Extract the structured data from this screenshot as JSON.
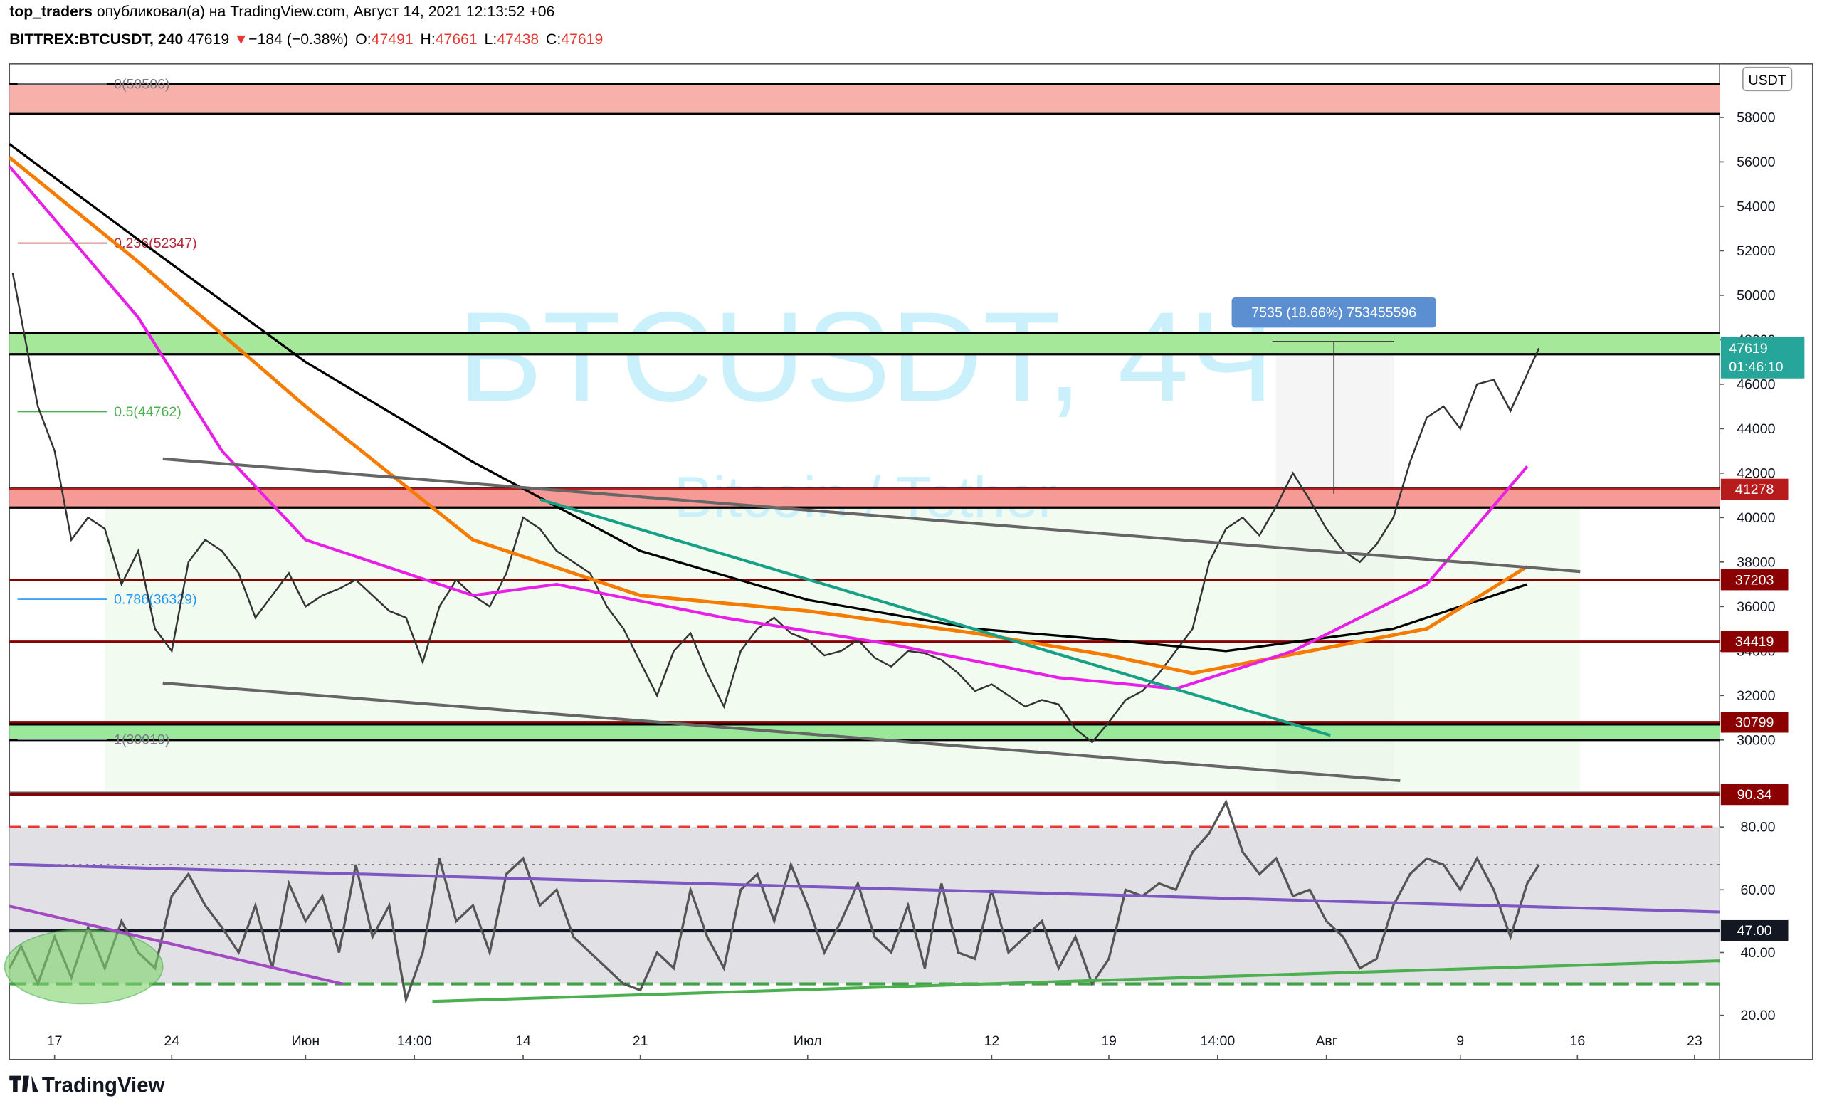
{
  "header": {
    "author": "top_traders",
    "published": "опубликовал(а) на TradingView.com, Август 14, 2021 12:13:52 +06",
    "symbol": "BITTREX:BTCUSDT, 240",
    "price": "47619",
    "arrow": "▼",
    "change": "−184 (−0.38%)",
    "ohlc": [
      {
        "key": "O:",
        "value": "47491"
      },
      {
        "key": "H:",
        "value": "47661"
      },
      {
        "key": "L:",
        "value": "47438"
      },
      {
        "key": "C:",
        "value": "47619"
      }
    ]
  },
  "watermark": {
    "title": "BTCUSDT, 4Ч",
    "subtitle": "Bitcoin / Tether"
  },
  "measure": "7535 (18.66%) 753455596",
  "footer": "TradingView",
  "chart_data": [
    {
      "type": "line",
      "axis_unit": "USDT",
      "xlim": [
        -2.7,
        99.5
      ],
      "xticks": [
        {
          "value": 0,
          "label": "17"
        },
        {
          "value": 7,
          "label": "24"
        },
        {
          "value": 15,
          "label": "Июн"
        },
        {
          "value": 21.5,
          "label": "14:00"
        },
        {
          "value": 28,
          "label": "14"
        },
        {
          "value": 35,
          "label": "21"
        },
        {
          "value": 45,
          "label": "Июл"
        },
        {
          "value": 56,
          "label": "12"
        },
        {
          "value": 63,
          "label": "19"
        },
        {
          "value": 69.5,
          "label": "14:00"
        },
        {
          "value": 76,
          "label": "Авг"
        },
        {
          "value": 84,
          "label": "9"
        },
        {
          "value": 91,
          "label": "16"
        },
        {
          "value": 98,
          "label": "23"
        }
      ],
      "ylim": [
        27750,
        60040
      ],
      "yticks": [
        30000,
        32000,
        34000,
        36000,
        38000,
        40000,
        42000,
        44000,
        46000,
        48000,
        50000,
        52000,
        54000,
        56000,
        58000
      ],
      "series": [
        {
          "color": "#333333",
          "x": [
            -2.5,
            -1,
            0,
            1,
            2,
            3,
            4,
            5,
            6,
            7,
            8,
            9,
            10,
            11,
            12,
            13,
            14,
            15,
            16,
            17,
            18,
            19,
            20,
            21,
            22,
            23,
            24,
            25,
            26,
            27,
            28,
            29,
            30,
            31,
            32,
            33,
            34,
            35,
            36,
            37,
            38,
            39,
            40,
            41,
            42,
            43,
            44,
            45,
            46,
            47,
            48,
            49,
            50,
            51,
            52,
            53,
            54,
            55,
            56,
            57,
            58,
            59,
            60,
            61,
            62,
            63,
            64,
            65,
            66,
            67,
            68,
            69,
            70,
            71,
            72,
            73,
            74,
            75,
            76,
            77,
            78,
            79,
            80,
            81,
            82,
            83,
            84,
            85,
            86,
            87,
            88.7
          ],
          "values": [
            51000,
            45000,
            43000,
            39000,
            40000,
            39500,
            37000,
            38500,
            35000,
            34000,
            38000,
            39000,
            38500,
            37500,
            35500,
            36500,
            37500,
            36000,
            36500,
            36800,
            37200,
            36500,
            35800,
            35500,
            33500,
            36000,
            37200,
            36500,
            36000,
            37500,
            40000,
            39500,
            38500,
            38000,
            37500,
            36000,
            35000,
            33500,
            32000,
            34000,
            34800,
            33000,
            31500,
            34000,
            35000,
            35500,
            34800,
            34500,
            33800,
            34000,
            34500,
            33700,
            33300,
            34000,
            33900,
            33600,
            33000,
            32200,
            32500,
            32000,
            31500,
            31800,
            31600,
            30500,
            29900,
            30800,
            31800,
            32200,
            33000,
            34000,
            35000,
            38000,
            39500,
            40000,
            39200,
            40500,
            42000,
            40800,
            39500,
            38500,
            38000,
            38800,
            40000,
            42500,
            44500,
            45000,
            44000,
            46000,
            46200,
            44800,
            47619
          ]
        },
        {
          "color": "#000000",
          "x": [
            -2.7,
            5,
            15,
            25,
            35,
            45,
            55,
            63,
            70,
            80,
            88
          ],
          "values": [
            56800,
            52500,
            47000,
            42500,
            38500,
            36300,
            35000,
            34500,
            34000,
            35000,
            37000
          ]
        },
        {
          "color": "#f57c00",
          "x": [
            -2.7,
            5,
            15,
            25,
            35,
            45,
            55,
            63,
            68,
            75,
            82,
            88
          ],
          "values": [
            56200,
            51500,
            45000,
            39000,
            36500,
            35800,
            34800,
            33800,
            33000,
            34000,
            35000,
            37800
          ]
        },
        {
          "color": "#e91ee9",
          "x": [
            -2.7,
            5,
            10,
            15,
            25,
            30,
            40,
            50,
            60,
            67,
            74,
            82,
            88
          ],
          "values": [
            55800,
            49000,
            43000,
            39000,
            36500,
            37000,
            35500,
            34300,
            32800,
            32300,
            34000,
            37000,
            42300
          ]
        }
      ],
      "zones": [
        {
          "from": 58150,
          "to": 59500,
          "color": "#f8b0ab"
        },
        {
          "from": 47350,
          "to": 48300,
          "color": "#a5e89a"
        },
        {
          "from": 40450,
          "to": 41300,
          "color": "#f59a96"
        },
        {
          "from": 30000,
          "to": 30700,
          "color": "#9ae89a"
        }
      ],
      "levels": [
        {
          "value": 41278,
          "color": "#b71c1c"
        },
        {
          "value": 37203,
          "color": "#8b0000"
        },
        {
          "value": 34419,
          "color": "#8b0000"
        },
        {
          "value": 30799,
          "color": "#8b0000"
        }
      ],
      "fib_levels": [
        {
          "label": "0(59506)",
          "value": 59506,
          "color": "#787b86"
        },
        {
          "label": "0.236(52347)",
          "value": 52347,
          "color": "#b22833"
        },
        {
          "label": "0.5(44762)",
          "value": 44762,
          "color": "#4caf50"
        },
        {
          "label": "0.786(36329)",
          "value": 36329,
          "color": "#2196f3"
        },
        {
          "label": "1(30019)",
          "value": 30019,
          "color": "#787b86"
        }
      ],
      "last_price": {
        "value": 47619,
        "timer": "01:46:10",
        "color": "#26a69a"
      }
    },
    {
      "type": "line",
      "xlim": [
        -2.7,
        99.5
      ],
      "ylim": [
        5.9,
        90.7
      ],
      "yticks": [
        {
          "value": 20,
          "label": "20.00"
        },
        {
          "value": 40,
          "label": "40.00"
        },
        {
          "value": 60,
          "label": "60.00"
        },
        {
          "value": 80,
          "label": "80.00"
        }
      ],
      "bands": {
        "upper": 80,
        "lower": 30,
        "mid": 68
      },
      "levels": [
        {
          "value": 90.34,
          "color": "#8b0000"
        },
        {
          "value": 47,
          "label": "47.00",
          "color": "#131722"
        }
      ],
      "series": [
        {
          "color": "#555555",
          "x": [
            -2.7,
            -2,
            -1,
            0,
            1,
            2,
            3,
            4,
            5,
            6,
            7,
            8,
            9,
            10,
            11,
            12,
            13,
            14,
            15,
            16,
            17,
            18,
            19,
            20,
            21,
            22,
            23,
            24,
            25,
            26,
            27,
            28,
            29,
            30,
            31,
            32,
            33,
            34,
            35,
            36,
            37,
            38,
            39,
            40,
            41,
            42,
            43,
            44,
            45,
            46,
            47,
            48,
            49,
            50,
            51,
            52,
            53,
            54,
            55,
            56,
            57,
            58,
            59,
            60,
            61,
            62,
            63,
            64,
            65,
            66,
            67,
            68,
            69,
            70,
            71,
            72,
            73,
            74,
            75,
            76,
            77,
            78,
            79,
            80,
            81,
            82,
            83,
            84,
            85,
            86,
            87,
            88,
            88.7
          ],
          "values": [
            35,
            42,
            30,
            45,
            32,
            48,
            35,
            50,
            40,
            35,
            58,
            65,
            55,
            48,
            40,
            55,
            35,
            62,
            50,
            58,
            40,
            68,
            45,
            55,
            25,
            40,
            70,
            50,
            55,
            40,
            65,
            70,
            55,
            60,
            45,
            40,
            35,
            30,
            28,
            40,
            35,
            60,
            45,
            35,
            60,
            65,
            50,
            68,
            55,
            40,
            50,
            62,
            45,
            40,
            55,
            35,
            62,
            40,
            38,
            60,
            40,
            45,
            50,
            35,
            45,
            30,
            38,
            60,
            58,
            62,
            60,
            72,
            78,
            88,
            72,
            65,
            70,
            58,
            60,
            50,
            45,
            35,
            38,
            55,
            65,
            70,
            68,
            60,
            70,
            60,
            45,
            62,
            68
          ]
        }
      ]
    }
  ]
}
